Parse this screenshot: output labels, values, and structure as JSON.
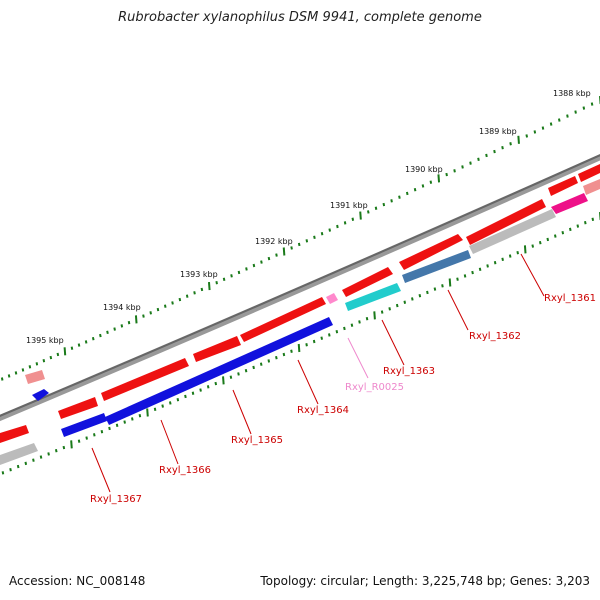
{
  "title": "Rubrobacter xylanophilus DSM 9941, complete genome",
  "footer": {
    "accession": "Accession: NC_008148",
    "summary": "Topology: circular; Length: 3,225,748 bp; Genes: 3,203"
  },
  "colors": {
    "backbone": "#777777",
    "tick": "#1a7a1a",
    "forward_cds": "#ee1111",
    "reverse_cds": "#1111dd",
    "rna": "#22cccc",
    "trna": "#ff88cc",
    "label_red": "#cc0000",
    "label_pink": "#ee88cc"
  },
  "kbp_labels": [
    "1388 kbp",
    "1389 kbp",
    "1390 kbp",
    "1391 kbp",
    "1392 kbp",
    "1393 kbp",
    "1394 kbp",
    "1395 kbp"
  ],
  "gene_labels": [
    {
      "text": "Rxyl_1361",
      "color": "#cc0000"
    },
    {
      "text": "Rxyl_1362",
      "color": "#cc0000"
    },
    {
      "text": "Rxyl_1363",
      "color": "#cc0000"
    },
    {
      "text": "Rxyl_R0025",
      "color": "#ee88cc"
    },
    {
      "text": "Rxyl_1364",
      "color": "#cc0000"
    },
    {
      "text": "Rxyl_1365",
      "color": "#cc0000"
    },
    {
      "text": "Rxyl_1366",
      "color": "#cc0000"
    },
    {
      "text": "Rxyl_1367",
      "color": "#cc0000"
    }
  ]
}
